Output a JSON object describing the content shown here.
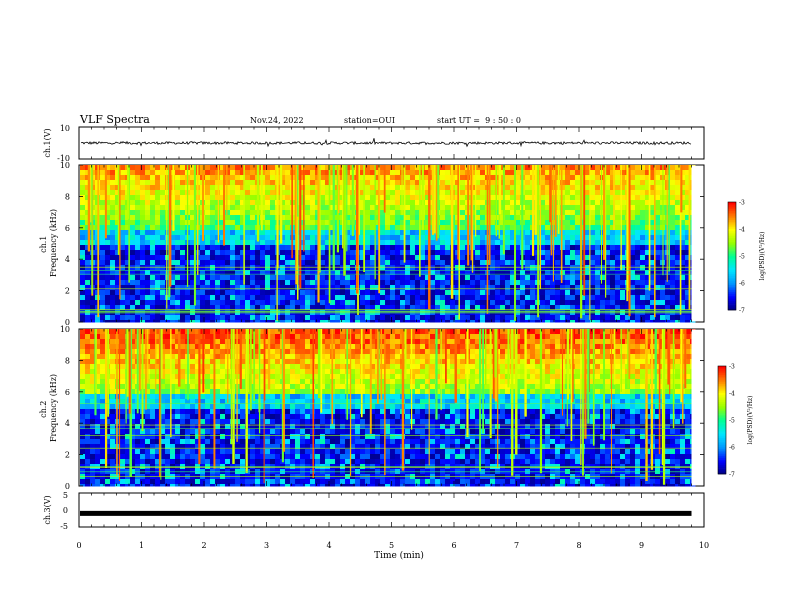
{
  "header": {
    "title": "VLF Spectra",
    "date": "Nov.24, 2022",
    "station": "station=OUI",
    "start_ut": "start UT =  9 : 50 : 0"
  },
  "chart_data": [
    {
      "type": "line",
      "name": "ch.1 waveform",
      "ylabel": "ch.1(V)",
      "ylim": [
        -10,
        10
      ],
      "yticks": [
        "10",
        "-10"
      ],
      "xlim": [
        0,
        10
      ],
      "baseline_value": 0
    },
    {
      "type": "heatmap",
      "name": "ch.1 spectrogram",
      "ylabel": "ch.1 Frequency (kHz)",
      "ylim": [
        0,
        10
      ],
      "yticks": [
        "0",
        "2",
        "4",
        "6",
        "8",
        "10"
      ],
      "xlim": [
        0,
        10
      ],
      "data_end_min": 9.8,
      "colorbar": {
        "label": "log(PSD)(V²/Hz)",
        "ticks": [
          "-3",
          "-4",
          "-5",
          "-6",
          "-7"
        ],
        "range": [
          -7,
          -3
        ]
      }
    },
    {
      "type": "heatmap",
      "name": "ch.2 spectrogram",
      "ylabel": "ch.2 Frequency (kHz)",
      "ylim": [
        0,
        10
      ],
      "yticks": [
        "0",
        "2",
        "4",
        "6",
        "8",
        "10"
      ],
      "xlim": [
        0,
        10
      ],
      "data_end_min": 9.8,
      "colorbar": {
        "label": "log(PSD)(V²/Hz)",
        "ticks": [
          "-3",
          "-4",
          "-5",
          "-6",
          "-7"
        ],
        "range": [
          -7,
          -3
        ]
      }
    },
    {
      "type": "line",
      "name": "ch.3 waveform",
      "ylabel": "ch.3(V)",
      "ylim": [
        -5,
        5
      ],
      "yticks": [
        "5",
        "0",
        "-5"
      ],
      "xlim": [
        0,
        10
      ],
      "baseline_value": -1
    }
  ],
  "x_axis": {
    "label": "Time (min)",
    "ticks": [
      "0",
      "1",
      "2",
      "3",
      "4",
      "5",
      "6",
      "7",
      "8",
      "9",
      "10"
    ]
  },
  "colors": {
    "colormap": [
      "#00007a",
      "#0000ff",
      "#0096ff",
      "#00e6ff",
      "#00ff96",
      "#96ff00",
      "#ffff00",
      "#ff7800",
      "#ff0000",
      "#ffffff"
    ]
  }
}
